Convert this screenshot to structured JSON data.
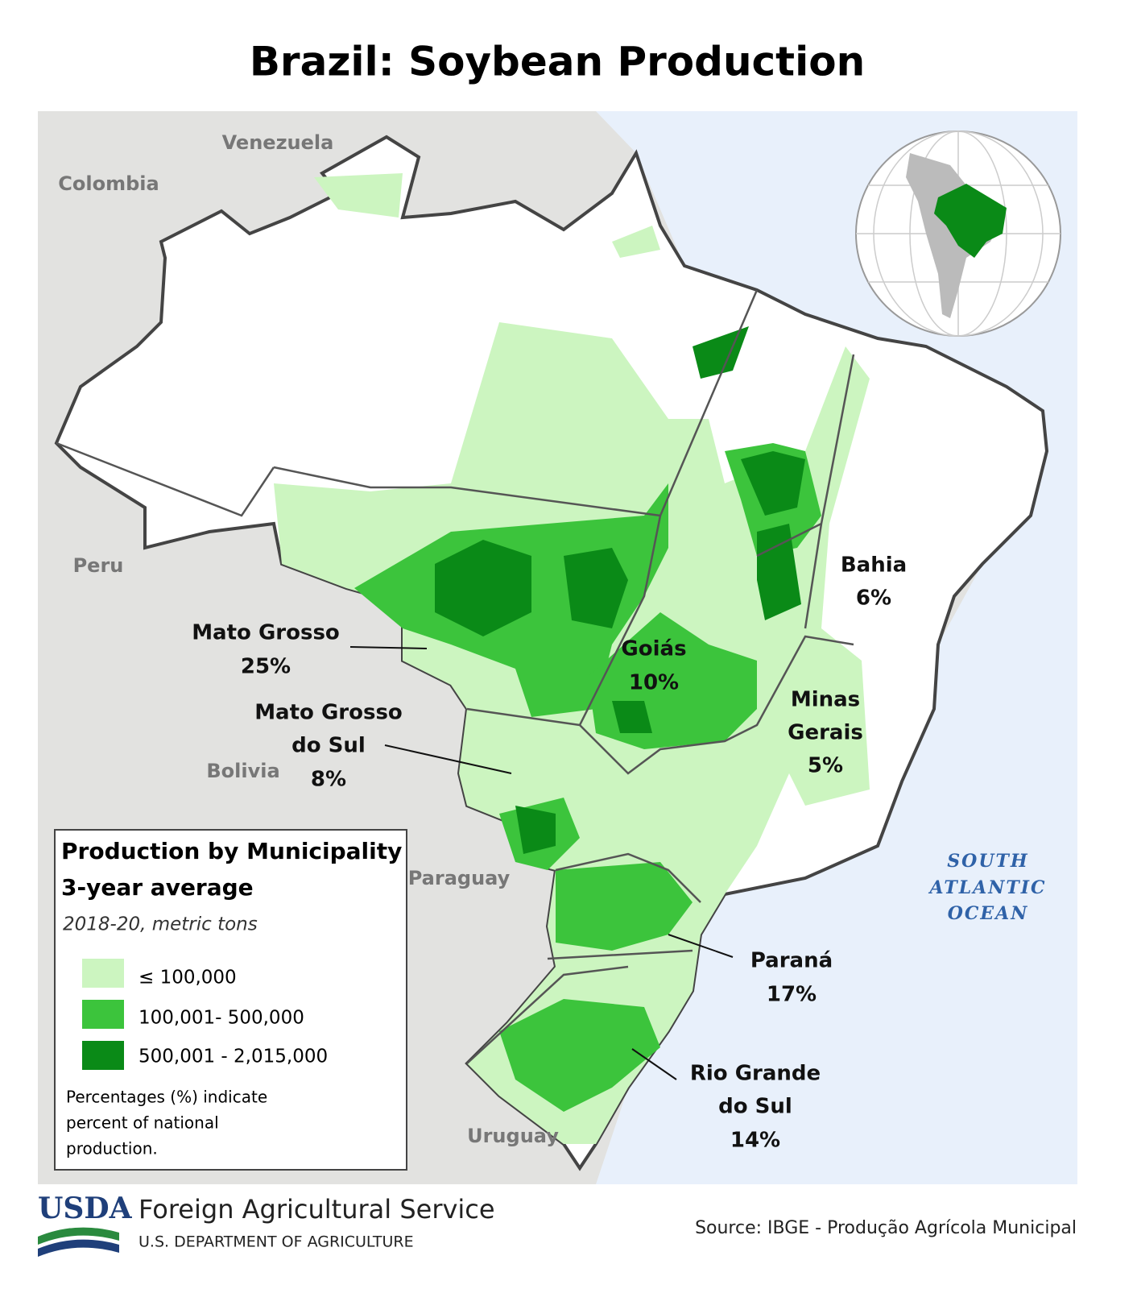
{
  "title": "Brazil: Soybean Production",
  "countries": [
    "Venezuela",
    "Colombia",
    "Peru",
    "Bolivia",
    "Paraguay",
    "Uruguay"
  ],
  "ocean": [
    "SOUTH",
    "ATLANTIC",
    "OCEAN"
  ],
  "states": [
    {
      "lines": [
        "Mato Grosso"
      ],
      "share": "25%"
    },
    {
      "lines": [
        "Mato Grosso",
        "do Sul"
      ],
      "share": "8%"
    },
    {
      "lines": [
        "Goiás"
      ],
      "share": "10%"
    },
    {
      "lines": [
        "Bahia"
      ],
      "share": "6%"
    },
    {
      "lines": [
        "Minas",
        "Gerais"
      ],
      "share": "5%"
    },
    {
      "lines": [
        "Paraná"
      ],
      "share": "17%"
    },
    {
      "lines": [
        "Rio Grande",
        "do Sul"
      ],
      "share": "14%"
    }
  ],
  "legend": {
    "title": [
      "Production by Municipality",
      "3-year average"
    ],
    "subtitle": "2018-20, metric tons",
    "items": [
      {
        "label": "≤ 100,000",
        "color": "#ccf5c0"
      },
      {
        "label": "100,001- 500,000",
        "color": "#3cc43c"
      },
      {
        "label": "500,001 - 2,015,000",
        "color": "#0a8a17"
      }
    ],
    "note": [
      "Percentages (%) indicate",
      "percent of national",
      "production."
    ]
  },
  "footer": {
    "logo": "USDA",
    "agency": "Foreign Agricultural Service",
    "department": "U.S. DEPARTMENT OF AGRICULTURE",
    "source": "Source: IBGE - Produção Agrícola Municipal"
  }
}
